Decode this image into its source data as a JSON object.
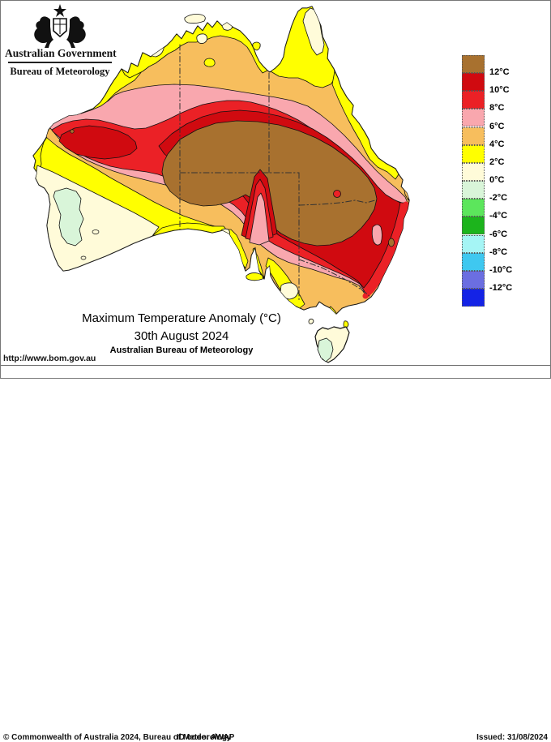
{
  "header": {
    "gov_title": "Australian Government",
    "bureau_title": "Bureau of Meteorology"
  },
  "titles": {
    "line1": "Maximum Temperature Anomaly (°C)",
    "line2": "30th August 2024",
    "line3": "Australian Bureau of Meteorology"
  },
  "footer": {
    "url": "http://www.bom.gov.au",
    "copyright": "© Commonwealth of Australia 2024, Bureau of Meteorology",
    "id_code": "ID code: AWAP",
    "issued": "Issued: 31/08/2024"
  },
  "legend": {
    "swatch_colors": [
      "#A8712F",
      "#D00A10",
      "#EB2126",
      "#F9A7AE",
      "#F7BE5D",
      "#FFFF00",
      "#FFFBD9",
      "#D9F5D9",
      "#5CE65C",
      "#1CB41C",
      "#A5F5F5",
      "#3FC8F0",
      "#6B6EE1",
      "#1423E6"
    ],
    "labels": [
      "12°C",
      "10°C",
      "8°C",
      "6°C",
      "4°C",
      "2°C",
      "0°C",
      "-2°C",
      "-4°C",
      "-6°C",
      "-8°C",
      "-10°C",
      "-12°C"
    ]
  },
  "palette": {
    "brown": "#A8712F",
    "darkred": "#D00A10",
    "red": "#EB2126",
    "pink": "#F9A7AE",
    "orange": "#F7BE5D",
    "yellow": "#FFFF00",
    "cream": "#FFFBD9",
    "mint": "#D9F5D9",
    "ocean": "#FFFFFF",
    "border_line": "#333333"
  }
}
